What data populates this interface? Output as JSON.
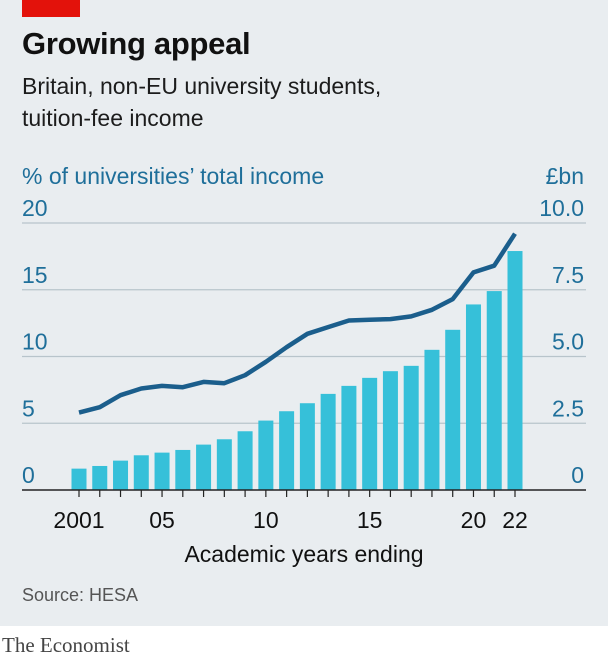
{
  "title": "Growing appeal",
  "subtitle_lines": [
    "Britain, non-EU university students,",
    "tuition-fee income"
  ],
  "source": "Source: HESA",
  "brand": "The Economist",
  "colors": {
    "bars": "#36c0d9",
    "line": "#1b5e8c",
    "axis_text": "#1f6f9a",
    "panel": "#e9edf0",
    "gridline": "#b8c4cb",
    "red_tag": "#e3120b"
  },
  "chart_data": {
    "type": "bar+line",
    "xlabel": "Academic years ending",
    "left_axis_label": "% of universities’ total income",
    "right_axis_label": "£bn",
    "left_ylim": [
      0,
      20
    ],
    "right_ylim": [
      0,
      10
    ],
    "left_ticks": [
      "0",
      "5",
      "10",
      "15",
      "20"
    ],
    "right_ticks": [
      "0",
      "2.5",
      "5.0",
      "7.5",
      "10.0"
    ],
    "x_tick_labels": [
      {
        "year": 2001,
        "label": "2001"
      },
      {
        "year": 2005,
        "label": "05"
      },
      {
        "year": 2010,
        "label": "10"
      },
      {
        "year": 2015,
        "label": "15"
      },
      {
        "year": 2020,
        "label": "20"
      },
      {
        "year": 2022,
        "label": "22"
      }
    ],
    "years": [
      2001,
      2002,
      2003,
      2004,
      2005,
      2006,
      2007,
      2008,
      2009,
      2010,
      2011,
      2012,
      2013,
      2014,
      2015,
      2016,
      2017,
      2018,
      2019,
      2020,
      2021,
      2022
    ],
    "series": [
      {
        "type": "bar",
        "axis": "right",
        "values": [
          0.8,
          0.9,
          1.1,
          1.3,
          1.4,
          1.5,
          1.7,
          1.9,
          2.2,
          2.6,
          2.95,
          3.25,
          3.6,
          3.9,
          4.2,
          4.45,
          4.65,
          5.25,
          6.0,
          6.95,
          7.45,
          8.95
        ]
      },
      {
        "type": "line",
        "axis": "left",
        "values": [
          5.8,
          6.2,
          7.1,
          7.6,
          7.8,
          7.7,
          8.1,
          8.0,
          8.6,
          9.6,
          10.7,
          11.7,
          12.2,
          12.7,
          12.75,
          12.8,
          13.0,
          13.5,
          14.3,
          16.3,
          16.8,
          19.2
        ]
      }
    ]
  }
}
